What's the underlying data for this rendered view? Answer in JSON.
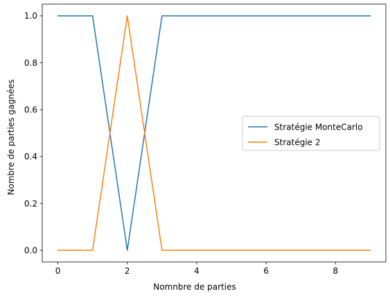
{
  "chart_data": {
    "type": "line",
    "x": [
      0,
      1,
      2,
      3,
      4,
      5,
      6,
      7,
      8,
      9
    ],
    "series": [
      {
        "name": "Stratégie MonteCarlo",
        "color": "#1f77b4",
        "values": [
          1,
          1,
          0,
          1,
          1,
          1,
          1,
          1,
          1,
          1
        ]
      },
      {
        "name": "Stratégie 2",
        "color": "#ff7f0e",
        "values": [
          0,
          0,
          1,
          0,
          0,
          0,
          0,
          0,
          0,
          0
        ]
      }
    ],
    "xlabel": "Nomnbre de parties",
    "ylabel": "Nombre de parties gagnées",
    "xlim": [
      -0.45,
      9.45
    ],
    "ylim": [
      -0.05,
      1.05
    ],
    "x_ticks": [
      "0",
      "2",
      "4",
      "6",
      "8"
    ],
    "y_ticks": [
      "0.0",
      "0.2",
      "0.4",
      "0.6",
      "0.8",
      "1.0"
    ],
    "grid": false,
    "legend_position": "center-right"
  }
}
